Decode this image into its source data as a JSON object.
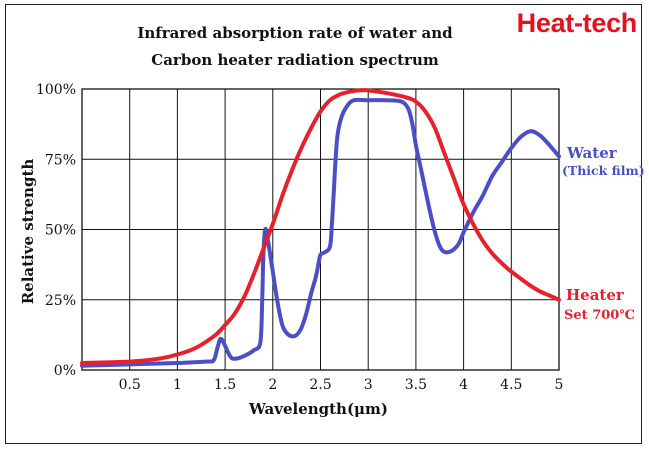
{
  "brand": {
    "name": "Heat-tech",
    "color": "#e8101c"
  },
  "chart_data": {
    "type": "line",
    "title": "Infrared absorption rate of water and",
    "subtitle": "Carbon heater radiation spectrum",
    "xlabel": "Wavelength(μm)",
    "ylabel": "Relative strength",
    "xlim": [
      0,
      5
    ],
    "ylim": [
      0,
      100
    ],
    "grid": true,
    "x_ticks": [
      0.5,
      1,
      1.5,
      2,
      2.5,
      3,
      3.5,
      4,
      4.5,
      5
    ],
    "x_tick_labels": [
      "0.5",
      "1",
      "1.5",
      "2",
      "2.5",
      "3",
      "3.5",
      "4",
      "4.5",
      "5"
    ],
    "y_ticks": [
      0,
      25,
      50,
      75,
      100
    ],
    "y_tick_labels": [
      "0%",
      "25%",
      "50%",
      "75%",
      "100%"
    ],
    "series": [
      {
        "name": "Water",
        "note": "(Thick film)",
        "color": "#4a4fc7",
        "points": [
          [
            0,
            1.5
          ],
          [
            0.5,
            2
          ],
          [
            1,
            2.5
          ],
          [
            1.3,
            3
          ],
          [
            1.38,
            3.5
          ],
          [
            1.42,
            8
          ],
          [
            1.45,
            11
          ],
          [
            1.48,
            10
          ],
          [
            1.55,
            5
          ],
          [
            1.6,
            4
          ],
          [
            1.7,
            5
          ],
          [
            1.8,
            7
          ],
          [
            1.87,
            10
          ],
          [
            1.89,
            26
          ],
          [
            1.9,
            40
          ],
          [
            1.92,
            50
          ],
          [
            1.95,
            46
          ],
          [
            2.0,
            35
          ],
          [
            2.05,
            24
          ],
          [
            2.1,
            16
          ],
          [
            2.15,
            13
          ],
          [
            2.2,
            12
          ],
          [
            2.25,
            12.5
          ],
          [
            2.3,
            15
          ],
          [
            2.35,
            20
          ],
          [
            2.4,
            27
          ],
          [
            2.45,
            33
          ],
          [
            2.48,
            38
          ],
          [
            2.5,
            41
          ],
          [
            2.55,
            42
          ],
          [
            2.6,
            44
          ],
          [
            2.62,
            52
          ],
          [
            2.64,
            64
          ],
          [
            2.66,
            76
          ],
          [
            2.68,
            84
          ],
          [
            2.72,
            90
          ],
          [
            2.78,
            94
          ],
          [
            2.85,
            96
          ],
          [
            3.0,
            96
          ],
          [
            3.2,
            96
          ],
          [
            3.35,
            95.5
          ],
          [
            3.42,
            93
          ],
          [
            3.46,
            88
          ],
          [
            3.5,
            80
          ],
          [
            3.55,
            72
          ],
          [
            3.6,
            64
          ],
          [
            3.65,
            56
          ],
          [
            3.7,
            49
          ],
          [
            3.75,
            44
          ],
          [
            3.8,
            42
          ],
          [
            3.88,
            42.5
          ],
          [
            3.95,
            45
          ],
          [
            4.0,
            49
          ],
          [
            4.1,
            56
          ],
          [
            4.2,
            62
          ],
          [
            4.3,
            69
          ],
          [
            4.4,
            74
          ],
          [
            4.5,
            79
          ],
          [
            4.6,
            83
          ],
          [
            4.7,
            85
          ],
          [
            4.8,
            83.5
          ],
          [
            4.9,
            80
          ],
          [
            5.0,
            76
          ]
        ]
      },
      {
        "name": "Heater",
        "note": "Set 700℃",
        "color": "#e8202c",
        "points": [
          [
            0,
            2.5
          ],
          [
            0.5,
            3
          ],
          [
            0.8,
            4
          ],
          [
            1.0,
            5.5
          ],
          [
            1.2,
            8
          ],
          [
            1.4,
            12.5
          ],
          [
            1.5,
            16
          ],
          [
            1.6,
            20
          ],
          [
            1.7,
            26
          ],
          [
            1.8,
            34
          ],
          [
            1.9,
            43
          ],
          [
            2.0,
            52
          ],
          [
            2.1,
            62
          ],
          [
            2.2,
            71
          ],
          [
            2.3,
            79
          ],
          [
            2.4,
            86
          ],
          [
            2.5,
            92
          ],
          [
            2.6,
            96
          ],
          [
            2.7,
            98
          ],
          [
            2.8,
            99
          ],
          [
            2.9,
            99.5
          ],
          [
            3.0,
            99.5
          ],
          [
            3.2,
            98.5
          ],
          [
            3.4,
            97
          ],
          [
            3.5,
            95.5
          ],
          [
            3.6,
            92
          ],
          [
            3.7,
            86
          ],
          [
            3.8,
            77
          ],
          [
            3.9,
            68
          ],
          [
            4.0,
            59
          ],
          [
            4.1,
            52
          ],
          [
            4.2,
            46
          ],
          [
            4.3,
            41.5
          ],
          [
            4.4,
            38
          ],
          [
            4.5,
            35
          ],
          [
            4.6,
            32.5
          ],
          [
            4.7,
            30
          ],
          [
            4.8,
            28
          ],
          [
            4.9,
            26.5
          ],
          [
            5.0,
            25
          ]
        ]
      }
    ]
  }
}
